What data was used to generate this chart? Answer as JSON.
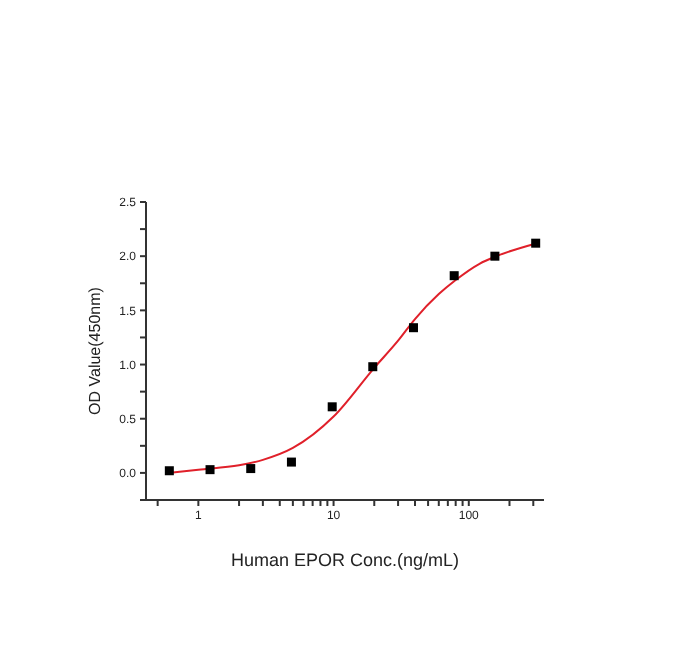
{
  "chart_data": {
    "type": "scatter",
    "xlabel": "Human EPOR Conc.(ng/mL)",
    "ylabel": "OD Value(450nm)",
    "log": "x",
    "marker": "square",
    "grid": false,
    "xlim": [
      0.41,
      360
    ],
    "ylim": [
      -0.25,
      2.5
    ],
    "xticks": [
      {
        "value": 0.5,
        "label": null
      },
      1,
      {
        "value": 2,
        "label": null
      },
      {
        "value": 3,
        "label": null
      },
      {
        "value": 4,
        "label": null
      },
      {
        "value": 5,
        "label": null
      },
      {
        "value": 6,
        "label": null
      },
      {
        "value": 7,
        "label": null
      },
      {
        "value": 8,
        "label": null
      },
      {
        "value": 9,
        "label": null
      },
      10,
      {
        "value": 20,
        "label": null
      },
      {
        "value": 30,
        "label": null
      },
      {
        "value": 40,
        "label": null
      },
      {
        "value": 50,
        "label": null
      },
      {
        "value": 60,
        "label": null
      },
      {
        "value": 70,
        "label": null
      },
      {
        "value": 80,
        "label": null
      },
      {
        "value": 90,
        "label": null
      },
      100,
      {
        "value": 200,
        "label": null
      },
      {
        "value": 300,
        "label": null
      }
    ],
    "yticks": [
      {
        "value": -0.25,
        "label": null
      },
      {
        "value": 0,
        "label": "0.0"
      },
      {
        "value": 0.25,
        "label": null
      },
      {
        "value": 0.5,
        "label": "0.5"
      },
      {
        "value": 0.75,
        "label": null
      },
      {
        "value": 1,
        "label": "1.0"
      },
      {
        "value": 1.25,
        "label": null
      },
      {
        "value": 1.5,
        "label": "1.5"
      },
      {
        "value": 1.75,
        "label": null
      },
      {
        "value": 2,
        "label": "2.0"
      },
      {
        "value": 2.25,
        "label": null
      },
      {
        "value": 2.5,
        "label": "2.5"
      }
    ],
    "series": [
      {
        "color": "#000000",
        "x": [
          0.61,
          1.22,
          2.44,
          4.88,
          9.77,
          19.5,
          39,
          78,
          156,
          312.5
        ],
        "values": [
          0.02,
          0.03,
          0.04,
          0.1,
          0.61,
          0.98,
          1.34,
          1.82,
          2.0,
          2.12
        ]
      },
      {
        "type": "line",
        "color": "#e0202a",
        "marker": "none",
        "x": [
          0.6,
          1,
          2,
          3,
          5,
          10,
          20,
          30,
          40,
          60,
          80,
          120,
          160,
          320
        ],
        "values": [
          0.0,
          0.03,
          0.07,
          0.12,
          0.23,
          0.52,
          0.97,
          1.22,
          1.42,
          1.65,
          1.78,
          1.93,
          2.0,
          2.12
        ]
      }
    ]
  }
}
